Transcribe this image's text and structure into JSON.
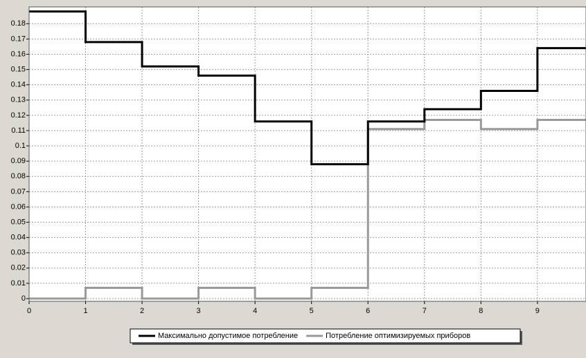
{
  "chart_data": {
    "type": "step",
    "x": [
      0,
      1,
      2,
      3,
      4,
      5,
      6,
      7,
      8,
      9
    ],
    "series": [
      {
        "name": "Максимально допустимое потребление",
        "color": "#000000",
        "values": [
          0.188,
          0.168,
          0.152,
          0.146,
          0.116,
          0.088,
          0.116,
          0.124,
          0.136,
          0.164
        ]
      },
      {
        "name": "Потребление оптимизируемых приборов",
        "color": "#999999",
        "values": [
          0,
          0.007,
          0,
          0.007,
          0,
          0.007,
          0.111,
          0.117,
          0.111,
          0.117
        ]
      }
    ],
    "xlim": [
      0,
      9.86
    ],
    "xticks": [
      0,
      1,
      2,
      3,
      4,
      5,
      6,
      7,
      8,
      9
    ],
    "ylim": [
      -0.0018,
      0.191
    ],
    "yticks": [
      0,
      0.01,
      0.02,
      0.03,
      0.04,
      0.05,
      0.06,
      0.07,
      0.08,
      0.09,
      0.1,
      0.11,
      0.12,
      0.13,
      0.14,
      0.15,
      0.16,
      0.17,
      0.18
    ],
    "grid": true,
    "legend": "bottom"
  }
}
